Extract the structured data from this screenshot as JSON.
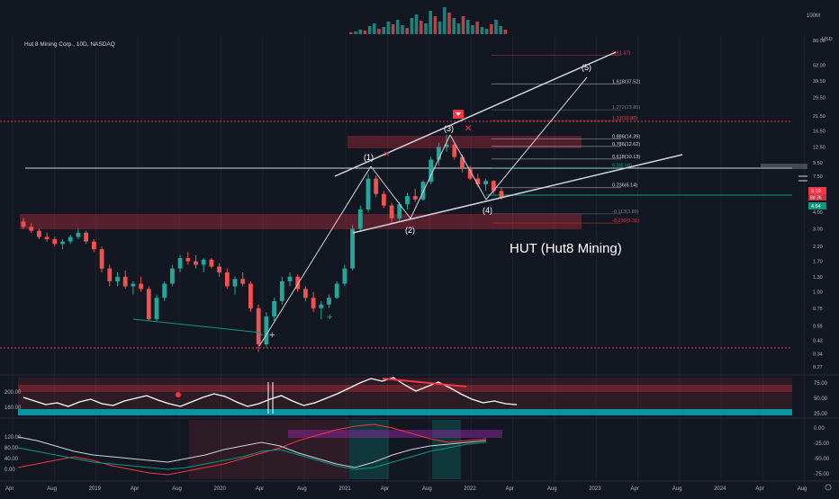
{
  "header": {
    "symbol_title": "Hut 8 Mining Corp., 10D, NASDAQ",
    "currency": "USD",
    "volume_scale": "100M"
  },
  "annotation_title": "HUT (Hut8 Mining)",
  "chart_data": {
    "type": "candlestick",
    "title": "Hut 8 Mining Corp., 10D, NASDAQ",
    "scale": "log",
    "ylim": [
      0.27,
      80
    ],
    "price_ticks": [
      "80.00",
      "52.00",
      "39.50",
      "29.50",
      "21.50",
      "16.50",
      "12.50",
      "9.50",
      "7.50",
      "5.50",
      "4.00",
      "3.00",
      "2.20",
      "1.70",
      "1.30",
      "1.00",
      "0.75",
      "0.55",
      "0.43",
      "0.34",
      "0.27"
    ],
    "price_tick_values": [
      80,
      52,
      39.5,
      29.5,
      21.5,
      16.5,
      12.5,
      9.5,
      7.5,
      5.5,
      4.0,
      3.0,
      2.2,
      1.7,
      1.3,
      1.0,
      0.75,
      0.55,
      0.43,
      0.34,
      0.27
    ],
    "time_ticks": [
      "Apr",
      "Aug",
      "2019",
      "Apr",
      "Aug",
      "2020",
      "Apr",
      "Aug",
      "2021",
      "Apr",
      "Aug",
      "2022",
      "Apr",
      "Aug",
      "2023",
      "Apr",
      "Aug",
      "2024",
      "Apr",
      "Aug"
    ],
    "current_price_label": "5.19",
    "countdown_label": "8d 3h",
    "secondary_price_label": "4.64",
    "fib_levels": [
      {
        "label": "2(61.87)",
        "value": 61.87,
        "color": "#f23645"
      },
      {
        "label": "1.618(37.52)",
        "value": 37.52,
        "color": "#d1d4dc"
      },
      {
        "label": "1.272(23.85)",
        "value": 23.85,
        "color": "#787b86"
      },
      {
        "label": "1.13(19.80)",
        "value": 19.8,
        "color": "#f23645"
      },
      {
        "label": "0.886(14.39)",
        "value": 14.39,
        "color": "#d1d4dc"
      },
      {
        "label": "0.786(12.62)",
        "value": 12.62,
        "color": "#d1d4dc"
      },
      {
        "label": "0.618(10.13)",
        "value": 10.13,
        "color": "#d1d4dc"
      },
      {
        "label": "0.5(8.68)",
        "value": 8.68,
        "color": "#089981"
      },
      {
        "label": "0.236(6.14)",
        "value": 6.14,
        "color": "#d1d4dc"
      },
      {
        "label": "-0.113(3.89)",
        "value": 3.89,
        "color": "#787b86"
      },
      {
        "label": "-0.236(3.31)",
        "value": 3.31,
        "color": "#f23645"
      }
    ],
    "wave_labels": [
      "(1)",
      "(2)",
      "(3)",
      "(4)",
      "(5)"
    ],
    "candles": [
      {
        "o": 3.4,
        "h": 3.6,
        "l": 3.0,
        "c": 3.1
      },
      {
        "o": 3.1,
        "h": 3.3,
        "l": 2.8,
        "c": 2.9
      },
      {
        "o": 2.9,
        "h": 3.0,
        "l": 2.5,
        "c": 2.6
      },
      {
        "o": 2.6,
        "h": 2.8,
        "l": 2.4,
        "c": 2.5
      },
      {
        "o": 2.5,
        "h": 2.6,
        "l": 2.2,
        "c": 2.3
      },
      {
        "o": 2.3,
        "h": 2.5,
        "l": 2.1,
        "c": 2.4
      },
      {
        "o": 2.4,
        "h": 2.7,
        "l": 2.3,
        "c": 2.6
      },
      {
        "o": 2.6,
        "h": 3.0,
        "l": 2.5,
        "c": 2.8
      },
      {
        "o": 2.8,
        "h": 2.9,
        "l": 2.3,
        "c": 2.4
      },
      {
        "o": 2.4,
        "h": 2.5,
        "l": 2.0,
        "c": 2.1
      },
      {
        "o": 2.1,
        "h": 2.2,
        "l": 1.4,
        "c": 1.5
      },
      {
        "o": 1.5,
        "h": 1.6,
        "l": 1.1,
        "c": 1.2
      },
      {
        "o": 1.2,
        "h": 1.4,
        "l": 1.1,
        "c": 1.3
      },
      {
        "o": 1.3,
        "h": 1.45,
        "l": 1.05,
        "c": 1.1
      },
      {
        "o": 1.1,
        "h": 1.2,
        "l": 0.95,
        "c": 1.15
      },
      {
        "o": 1.15,
        "h": 1.3,
        "l": 1.0,
        "c": 1.05
      },
      {
        "o": 1.05,
        "h": 1.1,
        "l": 0.6,
        "c": 0.62
      },
      {
        "o": 0.62,
        "h": 0.95,
        "l": 0.6,
        "c": 0.9
      },
      {
        "o": 0.9,
        "h": 1.2,
        "l": 0.85,
        "c": 1.15
      },
      {
        "o": 1.15,
        "h": 1.6,
        "l": 1.1,
        "c": 1.5
      },
      {
        "o": 1.5,
        "h": 1.9,
        "l": 1.4,
        "c": 1.8
      },
      {
        "o": 1.8,
        "h": 2.0,
        "l": 1.6,
        "c": 1.7
      },
      {
        "o": 1.7,
        "h": 1.9,
        "l": 1.5,
        "c": 1.6
      },
      {
        "o": 1.6,
        "h": 1.8,
        "l": 1.4,
        "c": 1.75
      },
      {
        "o": 1.75,
        "h": 1.8,
        "l": 1.5,
        "c": 1.55
      },
      {
        "o": 1.55,
        "h": 1.65,
        "l": 1.3,
        "c": 1.4
      },
      {
        "o": 1.4,
        "h": 1.5,
        "l": 1.05,
        "c": 1.1
      },
      {
        "o": 1.1,
        "h": 1.3,
        "l": 0.95,
        "c": 1.25
      },
      {
        "o": 1.25,
        "h": 1.4,
        "l": 1.1,
        "c": 1.15
      },
      {
        "o": 1.15,
        "h": 1.2,
        "l": 0.7,
        "c": 0.75
      },
      {
        "o": 0.75,
        "h": 0.8,
        "l": 0.35,
        "c": 0.4
      },
      {
        "o": 0.4,
        "h": 0.7,
        "l": 0.38,
        "c": 0.65
      },
      {
        "o": 0.65,
        "h": 0.9,
        "l": 0.6,
        "c": 0.85
      },
      {
        "o": 0.85,
        "h": 1.3,
        "l": 0.8,
        "c": 1.2
      },
      {
        "o": 1.2,
        "h": 1.4,
        "l": 1.1,
        "c": 1.3
      },
      {
        "o": 1.3,
        "h": 1.35,
        "l": 1.0,
        "c": 1.05
      },
      {
        "o": 1.05,
        "h": 1.1,
        "l": 0.85,
        "c": 0.9
      },
      {
        "o": 0.9,
        "h": 1.0,
        "l": 0.7,
        "c": 0.75
      },
      {
        "o": 0.75,
        "h": 0.85,
        "l": 0.62,
        "c": 0.8
      },
      {
        "o": 0.8,
        "h": 0.95,
        "l": 0.75,
        "c": 0.9
      },
      {
        "o": 0.9,
        "h": 1.2,
        "l": 0.88,
        "c": 1.15
      },
      {
        "o": 1.15,
        "h": 1.6,
        "l": 1.1,
        "c": 1.5
      },
      {
        "o": 1.5,
        "h": 3.2,
        "l": 1.45,
        "c": 3.0
      },
      {
        "o": 3.0,
        "h": 4.5,
        "l": 2.9,
        "c": 4.2
      },
      {
        "o": 4.2,
        "h": 7.8,
        "l": 4.0,
        "c": 7.2
      },
      {
        "o": 7.2,
        "h": 7.6,
        "l": 5.2,
        "c": 5.5
      },
      {
        "o": 5.5,
        "h": 5.8,
        "l": 4.3,
        "c": 4.5
      },
      {
        "o": 4.5,
        "h": 4.7,
        "l": 3.3,
        "c": 3.6
      },
      {
        "o": 3.6,
        "h": 4.8,
        "l": 3.4,
        "c": 4.6
      },
      {
        "o": 4.6,
        "h": 5.6,
        "l": 4.2,
        "c": 5.3
      },
      {
        "o": 5.3,
        "h": 6.0,
        "l": 4.8,
        "c": 5.0
      },
      {
        "o": 5.0,
        "h": 7.0,
        "l": 4.9,
        "c": 6.8
      },
      {
        "o": 6.8,
        "h": 10.5,
        "l": 6.5,
        "c": 10.0
      },
      {
        "o": 10.0,
        "h": 13.5,
        "l": 9.0,
        "c": 12.5
      },
      {
        "o": 12.5,
        "h": 15.5,
        "l": 11.5,
        "c": 13.0
      },
      {
        "o": 13.0,
        "h": 13.5,
        "l": 10.0,
        "c": 10.5
      },
      {
        "o": 10.5,
        "h": 11.0,
        "l": 8.0,
        "c": 8.5
      },
      {
        "o": 8.5,
        "h": 9.0,
        "l": 7.0,
        "c": 7.2
      },
      {
        "o": 7.2,
        "h": 7.8,
        "l": 6.2,
        "c": 6.5
      },
      {
        "o": 6.5,
        "h": 7.2,
        "l": 5.8,
        "c": 6.9
      },
      {
        "o": 6.9,
        "h": 7.0,
        "l": 5.5,
        "c": 5.8
      },
      {
        "o": 5.8,
        "h": 6.2,
        "l": 5.0,
        "c": 5.19
      }
    ]
  },
  "indicators": {
    "rsi_ticks": [
      "75.00",
      "50.00",
      "25.00"
    ],
    "volume_ticks": [
      "200.00",
      "160.00"
    ],
    "osc_ticks_left": [
      "120.00",
      "80.00",
      "40.00",
      "0.00"
    ],
    "osc_ticks_right": [
      "0.00",
      "-25.00",
      "-50.00",
      "-75.00"
    ]
  }
}
